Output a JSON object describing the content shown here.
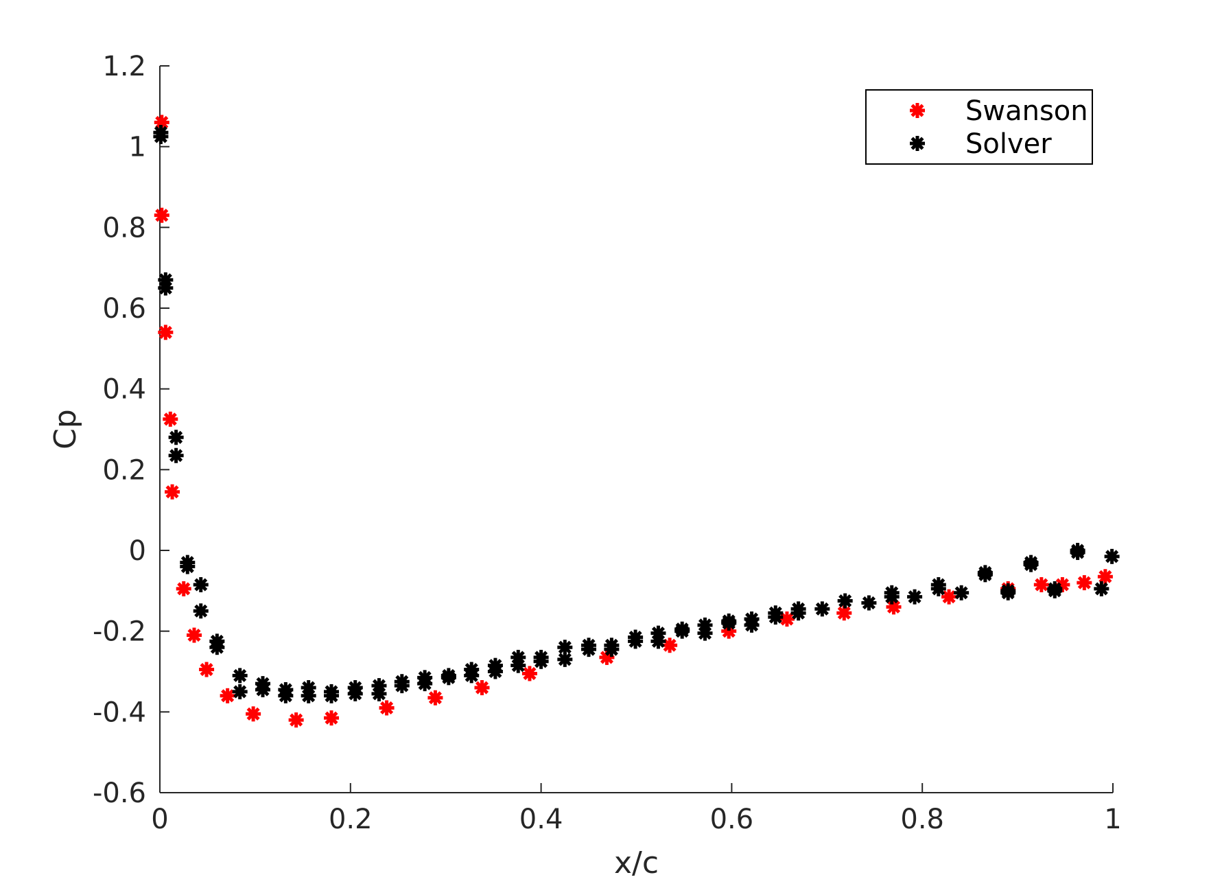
{
  "chart_data": {
    "type": "scatter",
    "title": "",
    "xlabel": "x/c",
    "ylabel": "Cp",
    "xlim": [
      0,
      1
    ],
    "ylim": [
      -0.6,
      1.2
    ],
    "xticks": [
      0,
      0.2,
      0.4,
      0.6,
      0.8,
      1
    ],
    "xtick_labels": [
      "0",
      "0.2",
      "0.4",
      "0.6",
      "0.8",
      "1"
    ],
    "yticks": [
      -0.6,
      -0.4,
      -0.2,
      0,
      0.2,
      0.4,
      0.6,
      0.8,
      1,
      1.2
    ],
    "ytick_labels": [
      "-0.6",
      "-0.4",
      "-0.2",
      "0",
      "0.2",
      "0.4",
      "0.6",
      "0.8",
      "1",
      "1.2"
    ],
    "grid": false,
    "legend_position": "top-right",
    "series": [
      {
        "name": "Swanson",
        "color": "#ff0000",
        "marker": "asterisk",
        "points": [
          [
            0.002,
            1.06
          ],
          [
            0.002,
            0.83
          ],
          [
            0.006,
            0.54
          ],
          [
            0.011,
            0.325
          ],
          [
            0.013,
            0.145
          ],
          [
            0.025,
            -0.095
          ],
          [
            0.036,
            -0.21
          ],
          [
            0.049,
            -0.295
          ],
          [
            0.071,
            -0.36
          ],
          [
            0.098,
            -0.405
          ],
          [
            0.143,
            -0.42
          ],
          [
            0.18,
            -0.415
          ],
          [
            0.238,
            -0.39
          ],
          [
            0.289,
            -0.365
          ],
          [
            0.338,
            -0.34
          ],
          [
            0.388,
            -0.305
          ],
          [
            0.469,
            -0.265
          ],
          [
            0.535,
            -0.235
          ],
          [
            0.597,
            -0.2
          ],
          [
            0.658,
            -0.17
          ],
          [
            0.718,
            -0.155
          ],
          [
            0.77,
            -0.14
          ],
          [
            0.828,
            -0.115
          ],
          [
            0.89,
            -0.095
          ],
          [
            0.925,
            -0.085
          ],
          [
            0.947,
            -0.085
          ],
          [
            0.97,
            -0.08
          ],
          [
            0.992,
            -0.065
          ]
        ]
      },
      {
        "name": "Solver",
        "color": "#000000",
        "marker": "asterisk",
        "points": [
          [
            0.001,
            1.035
          ],
          [
            0.001,
            1.025
          ],
          [
            0.006,
            0.67
          ],
          [
            0.006,
            0.65
          ],
          [
            0.017,
            0.28
          ],
          [
            0.017,
            0.235
          ],
          [
            0.029,
            -0.03
          ],
          [
            0.029,
            -0.04
          ],
          [
            0.043,
            -0.085
          ],
          [
            0.043,
            -0.15
          ],
          [
            0.06,
            -0.225
          ],
          [
            0.06,
            -0.24
          ],
          [
            0.084,
            -0.31
          ],
          [
            0.084,
            -0.35
          ],
          [
            0.108,
            -0.33
          ],
          [
            0.108,
            -0.345
          ],
          [
            0.132,
            -0.345
          ],
          [
            0.132,
            -0.36
          ],
          [
            0.156,
            -0.34
          ],
          [
            0.156,
            -0.36
          ],
          [
            0.18,
            -0.35
          ],
          [
            0.18,
            -0.36
          ],
          [
            0.205,
            -0.34
          ],
          [
            0.205,
            -0.355
          ],
          [
            0.23,
            -0.335
          ],
          [
            0.23,
            -0.355
          ],
          [
            0.254,
            -0.325
          ],
          [
            0.254,
            -0.335
          ],
          [
            0.278,
            -0.315
          ],
          [
            0.278,
            -0.33
          ],
          [
            0.303,
            -0.31
          ],
          [
            0.303,
            -0.315
          ],
          [
            0.327,
            -0.295
          ],
          [
            0.327,
            -0.31
          ],
          [
            0.352,
            -0.285
          ],
          [
            0.352,
            -0.3
          ],
          [
            0.376,
            -0.265
          ],
          [
            0.376,
            -0.285
          ],
          [
            0.4,
            -0.265
          ],
          [
            0.4,
            -0.275
          ],
          [
            0.425,
            -0.24
          ],
          [
            0.425,
            -0.27
          ],
          [
            0.45,
            -0.235
          ],
          [
            0.45,
            -0.245
          ],
          [
            0.474,
            -0.235
          ],
          [
            0.474,
            -0.245
          ],
          [
            0.499,
            -0.215
          ],
          [
            0.499,
            -0.225
          ],
          [
            0.523,
            -0.205
          ],
          [
            0.523,
            -0.225
          ],
          [
            0.548,
            -0.195
          ],
          [
            0.548,
            -0.2
          ],
          [
            0.572,
            -0.185
          ],
          [
            0.572,
            -0.205
          ],
          [
            0.597,
            -0.175
          ],
          [
            0.597,
            -0.18
          ],
          [
            0.621,
            -0.17
          ],
          [
            0.621,
            -0.185
          ],
          [
            0.646,
            -0.155
          ],
          [
            0.646,
            -0.165
          ],
          [
            0.67,
            -0.145
          ],
          [
            0.67,
            -0.155
          ],
          [
            0.695,
            -0.145
          ],
          [
            0.719,
            -0.125
          ],
          [
            0.744,
            -0.13
          ],
          [
            0.768,
            -0.105
          ],
          [
            0.768,
            -0.115
          ],
          [
            0.792,
            -0.115
          ],
          [
            0.817,
            -0.085
          ],
          [
            0.817,
            -0.095
          ],
          [
            0.841,
            -0.105
          ],
          [
            0.866,
            -0.055
          ],
          [
            0.866,
            -0.06
          ],
          [
            0.89,
            -0.1
          ],
          [
            0.89,
            -0.105
          ],
          [
            0.914,
            -0.03
          ],
          [
            0.914,
            -0.035
          ],
          [
            0.939,
            -0.095
          ],
          [
            0.939,
            -0.1
          ],
          [
            0.963,
            0.0
          ],
          [
            0.963,
            -0.005
          ],
          [
            0.988,
            -0.095
          ],
          [
            0.999,
            -0.015
          ]
        ]
      }
    ]
  }
}
